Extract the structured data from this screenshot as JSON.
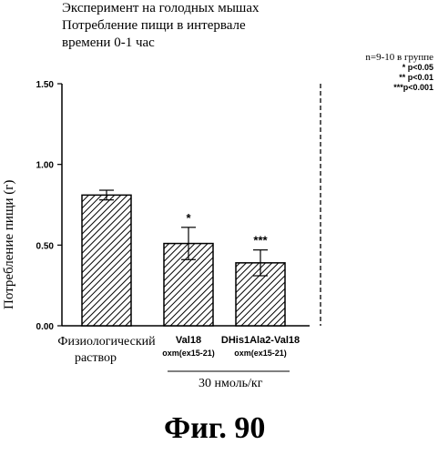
{
  "title_lines": [
    "Эксперимент на голодных мышах",
    "Потребление пищи в интервале",
    "времени 0-1 час"
  ],
  "stats": {
    "n_label": "n=9-10 в группе",
    "sig1": "* p<0.05",
    "sig2": "** p<0.01",
    "sig3": "***p<0.001"
  },
  "dose_label": "30 нмоль/кг",
  "figure_caption": "Фиг. 90",
  "chart_data": {
    "type": "bar",
    "ylabel": "Потребление пищи (г)",
    "ylim": [
      0,
      1.5
    ],
    "yticks": [
      "0.00",
      "0.50",
      "1.00",
      "1.50"
    ],
    "ytick_values": [
      0,
      0.5,
      1.0,
      1.5
    ],
    "categories": [
      {
        "line1": "Физиологический",
        "line2": "раствор"
      },
      {
        "line1": "Val18",
        "line2": "oxm(ex15-21)"
      },
      {
        "line1": "DHis1Ala2-Val18",
        "line2": "oxm(ex15-21)"
      }
    ],
    "values": [
      0.81,
      0.51,
      0.39
    ],
    "errors": [
      0.03,
      0.1,
      0.08
    ],
    "significance": [
      "",
      "*",
      "***"
    ],
    "grid": false,
    "bar_fill": "hatched"
  }
}
